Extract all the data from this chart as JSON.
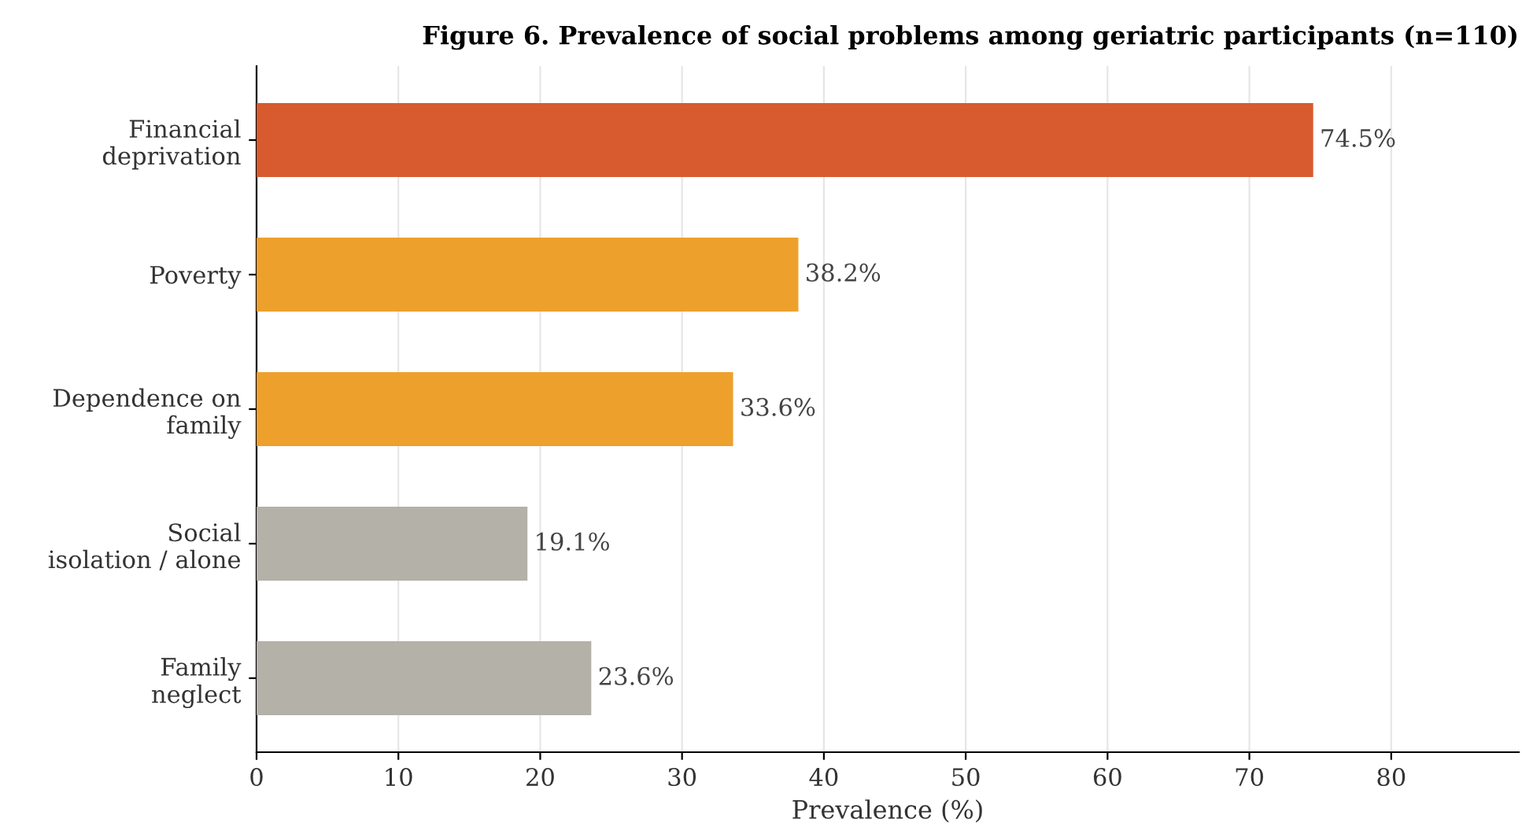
{
  "chart_data": {
    "type": "bar",
    "orientation": "horizontal",
    "title": "Figure 6. Prevalence of social problems among geriatric participants (n=110)",
    "xlabel": "Prevalence (%)",
    "categories": [
      "Financial\ndeprivation",
      "Poverty",
      "Dependence on\nfamily",
      "Social\nisolation / alone",
      "Family\nneglect"
    ],
    "values": [
      74.5,
      38.2,
      33.6,
      19.1,
      23.6
    ],
    "colors": [
      "#d75b2f",
      "#eea02c",
      "#eea02c",
      "#b3b1a8",
      "#b3b1a8"
    ],
    "value_labels": [
      "74.5%",
      "38.2%",
      "33.6%",
      "19.1%",
      "23.6%"
    ],
    "xlim": [
      0,
      89
    ],
    "xticks": [
      0,
      10,
      20,
      30,
      40,
      50,
      60,
      70,
      80
    ],
    "grid": "x"
  }
}
